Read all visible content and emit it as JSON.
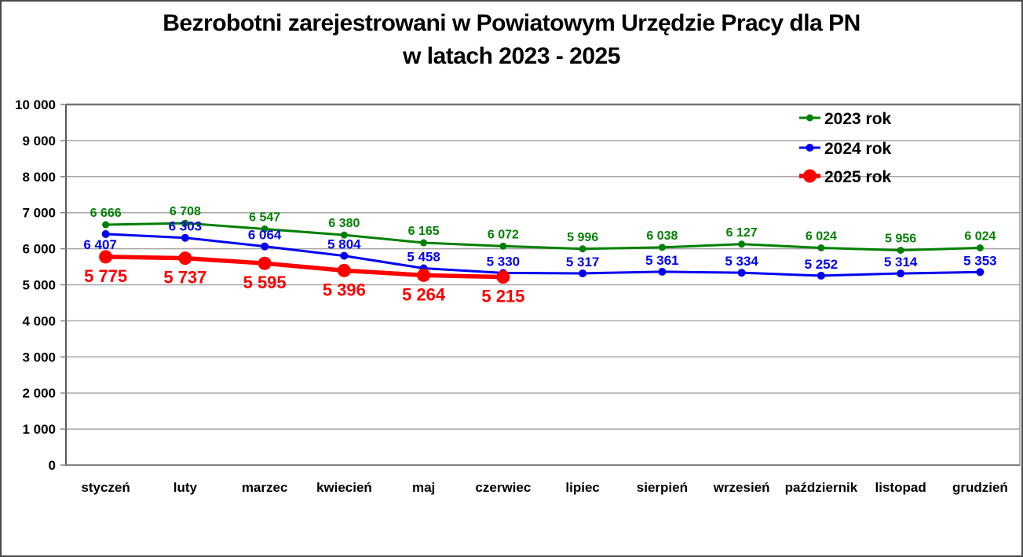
{
  "title": {
    "line1": "Bezrobotni zarejestrowani w Powiatowym Urzędzie Pracy dla PN",
    "line2": "w latach 2023 - 2025"
  },
  "chart_data": {
    "type": "line",
    "categories": [
      "styczeń",
      "luty",
      "marzec",
      "kwiecień",
      "maj",
      "czerwiec",
      "lipiec",
      "sierpień",
      "wrzesień",
      "październik",
      "listopad",
      "grudzień"
    ],
    "series": [
      {
        "name": "2023 rok",
        "color": "#008000",
        "values": [
          6666,
          6708,
          6547,
          6380,
          6165,
          6072,
          5996,
          6038,
          6127,
          6024,
          5956,
          6024
        ]
      },
      {
        "name": "2024 rok",
        "color": "#0000ee",
        "values": [
          6407,
          6303,
          6064,
          5804,
          5458,
          5330,
          5317,
          5361,
          5334,
          5252,
          5314,
          5353
        ]
      },
      {
        "name": "2025 rok",
        "color": "#fe0000",
        "values": [
          5775,
          5737,
          5595,
          5396,
          5264,
          5215
        ]
      }
    ],
    "ylim": [
      0,
      10000
    ],
    "ytick_step": 1000,
    "ytick_labels": [
      "0",
      "1 000",
      "2 000",
      "3 000",
      "4 000",
      "5 000",
      "6 000",
      "7 000",
      "8 000",
      "9 000",
      "10 000"
    ],
    "grid": "horizontal-only",
    "gridline_color": "#a6a6a6",
    "axis_color": "#808080",
    "legend_position": "top-right-inside",
    "data_labels": "shown, thousands separated by space"
  }
}
